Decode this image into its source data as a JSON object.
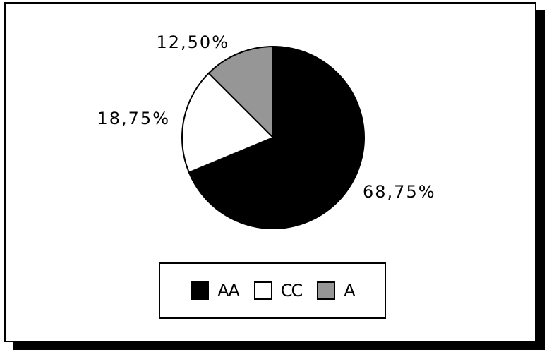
{
  "chart_data": {
    "type": "pie",
    "title": "",
    "slices": [
      {
        "name": "AA",
        "value": 68.75,
        "label": "68,75%",
        "color": "#000000"
      },
      {
        "name": "CC",
        "value": 18.75,
        "label": "18,75%",
        "color": "#ffffff"
      },
      {
        "name": "A",
        "value": 12.5,
        "label": "12,50%",
        "color": "#969696"
      }
    ],
    "start_angle": "12 o'clock",
    "direction": "clockwise",
    "legend_position": "bottom",
    "legend": [
      "AA",
      "CC",
      "A"
    ]
  }
}
